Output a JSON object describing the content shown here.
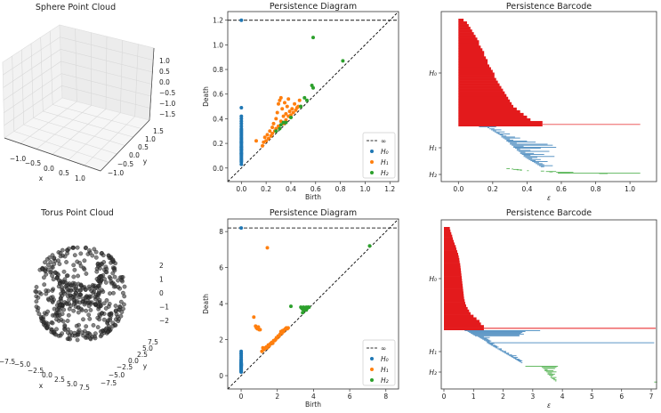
{
  "chart_data": [
    {
      "type": "scatter3d",
      "title": "Sphere Point Cloud",
      "xlabel": "x",
      "ylabel": "y",
      "xticks": [
        "−1.0",
        "−0.5",
        "0.0",
        "0.5",
        "1.0"
      ],
      "yticks": [
        "1.5",
        "1.0",
        "0.5",
        "0.0",
        "−0.5",
        "−1.0"
      ],
      "zticks": [
        "1.0",
        "0.5",
        "0.0",
        "−0.5",
        "−1.0",
        "−1.5"
      ],
      "shape": "sphere"
    },
    {
      "type": "scatter",
      "title": "Persistence Diagram",
      "xlabel": "Birth",
      "ylabel": "Death",
      "xlim": [
        -0.11,
        1.27
      ],
      "ylim": [
        -0.11,
        1.27
      ],
      "xticks": [
        0.0,
        0.2,
        0.4,
        0.6,
        0.8,
        1.0,
        1.2
      ],
      "yticks": [
        0.0,
        0.2,
        0.4,
        0.6,
        0.8,
        1.0,
        1.2
      ],
      "tick_decimals": 1,
      "infinity": 1.2,
      "legend": {
        "position": "lower-right",
        "entries": [
          "∞",
          "H₀",
          "H₁",
          "H₂"
        ]
      },
      "series": [
        {
          "name": "H₀",
          "color": "#1f77b4",
          "points": [
            [
              0,
              0.03
            ],
            [
              0,
              0.05
            ],
            [
              0,
              0.06
            ],
            [
              0,
              0.07
            ],
            [
              0,
              0.08
            ],
            [
              0,
              0.09
            ],
            [
              0,
              0.1
            ],
            [
              0,
              0.11
            ],
            [
              0,
              0.12
            ],
            [
              0,
              0.12
            ],
            [
              0,
              0.13
            ],
            [
              0,
              0.14
            ],
            [
              0,
              0.15
            ],
            [
              0,
              0.15
            ],
            [
              0,
              0.16
            ],
            [
              0,
              0.17
            ],
            [
              0,
              0.17
            ],
            [
              0,
              0.18
            ],
            [
              0,
              0.19
            ],
            [
              0,
              0.2
            ],
            [
              0,
              0.21
            ],
            [
              0,
              0.21
            ],
            [
              0,
              0.22
            ],
            [
              0,
              0.23
            ],
            [
              0,
              0.24
            ],
            [
              0,
              0.25
            ],
            [
              0,
              0.26
            ],
            [
              0,
              0.27
            ],
            [
              0,
              0.28
            ],
            [
              0,
              0.29
            ],
            [
              0,
              0.3
            ],
            [
              0,
              0.31
            ],
            [
              0,
              0.32
            ],
            [
              0,
              0.34
            ],
            [
              0,
              0.36
            ],
            [
              0,
              0.38
            ],
            [
              0,
              0.4
            ],
            [
              0,
              0.42
            ],
            [
              0,
              0.49
            ],
            [
              0,
              "inf"
            ]
          ]
        },
        {
          "name": "H₁",
          "color": "#ff7f0e",
          "points": [
            [
              0.12,
              0.22
            ],
            [
              0.17,
              0.18
            ],
            [
              0.18,
              0.21
            ],
            [
              0.19,
              0.25
            ],
            [
              0.2,
              0.22
            ],
            [
              0.21,
              0.27
            ],
            [
              0.22,
              0.24
            ],
            [
              0.23,
              0.3
            ],
            [
              0.24,
              0.26
            ],
            [
              0.25,
              0.33
            ],
            [
              0.25,
              0.28
            ],
            [
              0.26,
              0.36
            ],
            [
              0.27,
              0.3
            ],
            [
              0.28,
              0.4
            ],
            [
              0.28,
              0.32
            ],
            [
              0.29,
              0.45
            ],
            [
              0.3,
              0.34
            ],
            [
              0.3,
              0.52
            ],
            [
              0.31,
              0.55
            ],
            [
              0.32,
              0.57
            ],
            [
              0.32,
              0.38
            ],
            [
              0.33,
              0.48
            ],
            [
              0.34,
              0.42
            ],
            [
              0.34,
              0.36
            ],
            [
              0.35,
              0.53
            ],
            [
              0.36,
              0.44
            ],
            [
              0.36,
              0.39
            ],
            [
              0.37,
              0.5
            ],
            [
              0.38,
              0.42
            ],
            [
              0.38,
              0.56
            ],
            [
              0.39,
              0.46
            ],
            [
              0.4,
              0.43
            ],
            [
              0.41,
              0.48
            ],
            [
              0.42,
              0.45
            ],
            [
              0.43,
              0.52
            ],
            [
              0.44,
              0.47
            ],
            [
              0.45,
              0.49
            ],
            [
              0.46,
              0.5
            ],
            [
              0.47,
              0.55
            ],
            [
              0.48,
              0.5
            ]
          ]
        },
        {
          "name": "H₂",
          "color": "#2ca02c",
          "points": [
            [
              0.28,
              0.3
            ],
            [
              0.31,
              0.32
            ],
            [
              0.32,
              0.35
            ],
            [
              0.34,
              0.37
            ],
            [
              0.36,
              0.37
            ],
            [
              0.4,
              0.41
            ],
            [
              0.48,
              0.5
            ],
            [
              0.51,
              0.57
            ],
            [
              0.53,
              0.55
            ],
            [
              0.57,
              0.67
            ],
            [
              0.58,
              0.65
            ],
            [
              0.58,
              1.06
            ],
            [
              0.82,
              0.87
            ]
          ]
        }
      ]
    },
    {
      "type": "barcode",
      "title": "Persistence Barcode",
      "xlabel": "ε",
      "xlim": [
        -0.1,
        1.155
      ],
      "xticks": [
        0.0,
        0.2,
        0.4,
        0.6,
        0.8,
        1.0
      ],
      "tick_decimals": 1,
      "ytick_labels": [
        "H₀",
        "H₁",
        "H₂"
      ],
      "inf_bar_end": 1.06,
      "colors": {
        "H0": "#e31a1c",
        "H0_inf": "#f28b8c",
        "H1": "#377eb8",
        "H2": "#4daf4a"
      },
      "source": "same intervals as Persistence Diagram (sphere)"
    },
    {
      "type": "scatter3d",
      "title": "Torus Point Cloud",
      "xlabel": "x",
      "ylabel": "y",
      "xticks": [
        "−7.5",
        "−5.0",
        "−2.5",
        "0.0",
        "2.5",
        "5.0",
        "7.5"
      ],
      "yticks": [
        "7.5",
        "5.0",
        "2.5",
        "0.0",
        "−2.5",
        "−5.0",
        "−7.5"
      ],
      "zticks": [
        "2",
        "1",
        "0",
        "−1",
        "−2"
      ],
      "shape": "torus"
    },
    {
      "type": "scatter",
      "title": "Persistence Diagram",
      "xlabel": "Birth",
      "ylabel": "Death",
      "xlim": [
        -0.74,
        8.7
      ],
      "ylim": [
        -0.74,
        8.7
      ],
      "xticks": [
        0,
        2,
        4,
        6,
        8
      ],
      "yticks": [
        0,
        2,
        4,
        6,
        8
      ],
      "tick_decimals": 0,
      "infinity": 8.2,
      "legend": {
        "position": "lower-right",
        "entries": [
          "∞",
          "H₀",
          "H₁",
          "H₂"
        ]
      },
      "series": [
        {
          "name": "H₀",
          "color": "#1f77b4",
          "points": [
            [
              0,
              0.2
            ],
            [
              0,
              0.22
            ],
            [
              0,
              0.25
            ],
            [
              0,
              0.28
            ],
            [
              0,
              0.3
            ],
            [
              0,
              0.33
            ],
            [
              0,
              0.36
            ],
            [
              0,
              0.4
            ],
            [
              0,
              0.42
            ],
            [
              0,
              0.45
            ],
            [
              0,
              0.48
            ],
            [
              0,
              0.5
            ],
            [
              0,
              0.52
            ],
            [
              0,
              0.53
            ],
            [
              0,
              0.55
            ],
            [
              0,
              0.56
            ],
            [
              0,
              0.57
            ],
            [
              0,
              0.58
            ],
            [
              0,
              0.59
            ],
            [
              0,
              0.6
            ],
            [
              0,
              0.61
            ],
            [
              0,
              0.62
            ],
            [
              0,
              0.63
            ],
            [
              0,
              0.64
            ],
            [
              0,
              0.65
            ],
            [
              0,
              0.66
            ],
            [
              0,
              0.67
            ],
            [
              0,
              0.68
            ],
            [
              0,
              0.7
            ],
            [
              0,
              0.72
            ],
            [
              0,
              0.75
            ],
            [
              0,
              0.8
            ],
            [
              0,
              0.85
            ],
            [
              0,
              0.9
            ],
            [
              0,
              1.0
            ],
            [
              0,
              1.1
            ],
            [
              0,
              1.2
            ],
            [
              0,
              1.25
            ],
            [
              0,
              1.35
            ],
            [
              0,
              "inf"
            ]
          ]
        },
        {
          "name": "H₁",
          "color": "#ff7f0e",
          "points": [
            [
              0.7,
              3.25
            ],
            [
              0.8,
              2.75
            ],
            [
              0.85,
              2.65
            ],
            [
              0.9,
              2.6
            ],
            [
              0.95,
              2.7
            ],
            [
              1.0,
              2.55
            ],
            [
              1.05,
              2.55
            ],
            [
              1.15,
              1.35
            ],
            [
              1.2,
              1.55
            ],
            [
              1.25,
              1.45
            ],
            [
              1.3,
              1.5
            ],
            [
              1.35,
              1.55
            ],
            [
              1.4,
              1.6
            ],
            [
              1.45,
              7.1
            ],
            [
              1.45,
              1.55
            ],
            [
              1.5,
              1.7
            ],
            [
              1.55,
              1.65
            ],
            [
              1.6,
              1.75
            ],
            [
              1.65,
              1.8
            ],
            [
              1.7,
              1.85
            ],
            [
              1.75,
              1.8
            ],
            [
              1.8,
              1.95
            ],
            [
              1.85,
              1.95
            ],
            [
              1.9,
              2.0
            ],
            [
              1.95,
              2.1
            ],
            [
              2.0,
              2.1
            ],
            [
              2.05,
              2.2
            ],
            [
              2.1,
              2.2
            ],
            [
              2.15,
              2.3
            ],
            [
              2.2,
              2.45
            ],
            [
              2.25,
              2.35
            ],
            [
              2.3,
              2.5
            ],
            [
              2.35,
              2.45
            ],
            [
              2.4,
              2.55
            ],
            [
              2.45,
              2.6
            ],
            [
              2.5,
              2.65
            ],
            [
              2.55,
              2.6
            ],
            [
              2.6,
              2.65
            ]
          ]
        },
        {
          "name": "H₂",
          "color": "#2ca02c",
          "points": [
            [
              2.75,
              3.85
            ],
            [
              3.3,
              3.8
            ],
            [
              3.35,
              3.75
            ],
            [
              3.4,
              3.7
            ],
            [
              3.4,
              3.5
            ],
            [
              3.45,
              3.8
            ],
            [
              3.5,
              3.65
            ],
            [
              3.5,
              3.75
            ],
            [
              3.55,
              3.7
            ],
            [
              3.6,
              3.8
            ],
            [
              3.6,
              3.65
            ],
            [
              3.65,
              3.75
            ],
            [
              3.7,
              3.8
            ],
            [
              3.75,
              3.8
            ],
            [
              7.1,
              7.2
            ]
          ]
        }
      ]
    },
    {
      "type": "barcode",
      "title": "Persistence Barcode",
      "xlabel": "ε",
      "xlim": [
        -0.09,
        7.18
      ],
      "xticks": [
        0,
        1,
        2,
        3,
        4,
        5,
        6,
        7
      ],
      "tick_decimals": 0,
      "ytick_labels": [
        "H₀",
        "H₁",
        "H₂"
      ],
      "inf_bar_end": 7.15,
      "colors": {
        "H0": "#e31a1c",
        "H0_inf": "#ee5a5b",
        "H1": "#377eb8",
        "H2": "#4daf4a"
      },
      "source": "same intervals as Persistence Diagram (torus)"
    }
  ]
}
